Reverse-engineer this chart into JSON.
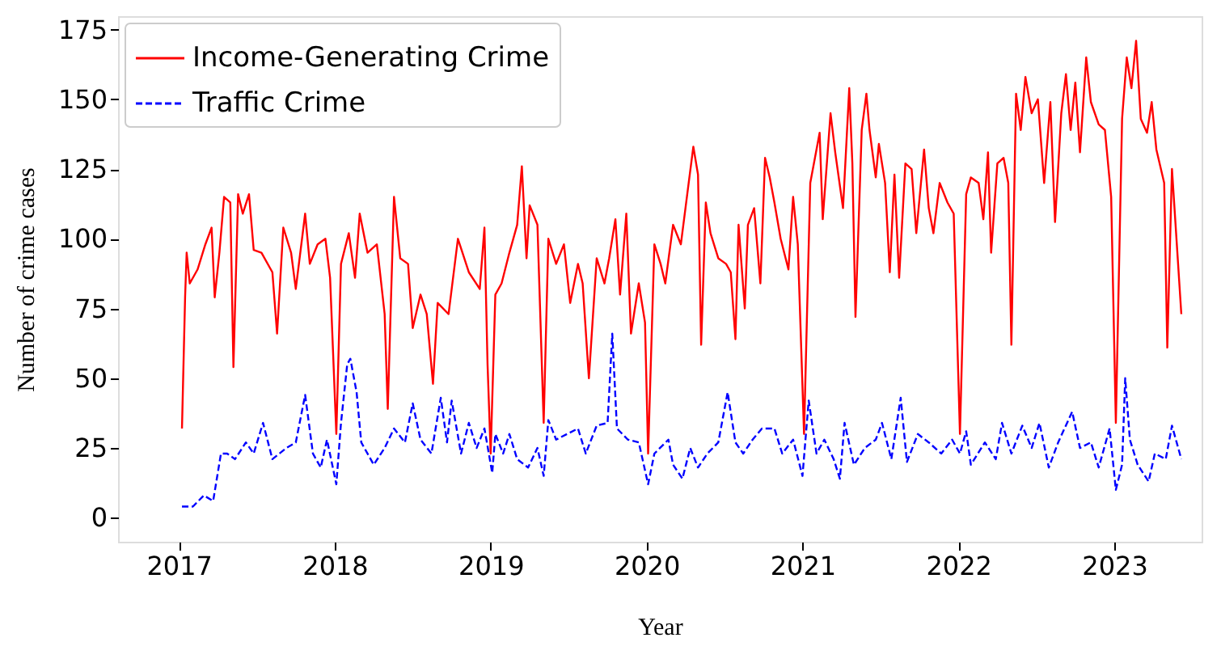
{
  "chart_data": {
    "type": "line",
    "xlabel": "Year",
    "ylabel": "Number of crime cases",
    "xlim": [
      2016.61,
      2023.56
    ],
    "xticks": [
      2017,
      2018,
      2019,
      2020,
      2021,
      2022,
      2023
    ],
    "ylim": [
      -8.6,
      179.8
    ],
    "yticks": [
      0,
      25,
      50,
      75,
      100,
      125,
      150,
      175
    ],
    "legend": "top left",
    "series": [
      {
        "name": "Income-Generating Crime",
        "color": "#ff0000",
        "line_style": "solid",
        "x": [
          2017.02,
          2017.04,
          2017.05,
          2017.07,
          2017.12,
          2017.17,
          2017.21,
          2017.23,
          2017.26,
          2017.29,
          2017.33,
          2017.35,
          2017.38,
          2017.41,
          2017.45,
          2017.48,
          2017.53,
          2017.6,
          2017.63,
          2017.67,
          2017.72,
          2017.75,
          2017.81,
          2017.84,
          2017.89,
          2017.94,
          2017.97,
          2018.01,
          2018.04,
          2018.09,
          2018.13,
          2018.16,
          2018.21,
          2018.27,
          2018.32,
          2018.34,
          2018.38,
          2018.42,
          2018.47,
          2018.5,
          2018.55,
          2018.59,
          2018.63,
          2018.66,
          2018.73,
          2018.79,
          2018.86,
          2018.93,
          2018.96,
          2018.98,
          2019.0,
          2019.03,
          2019.07,
          2019.12,
          2019.17,
          2019.2,
          2019.23,
          2019.25,
          2019.3,
          2019.34,
          2019.37,
          2019.42,
          2019.47,
          2019.51,
          2019.56,
          2019.59,
          2019.63,
          2019.68,
          2019.73,
          2019.76,
          2019.8,
          2019.83,
          2019.87,
          2019.9,
          2019.95,
          2019.99,
          2020.01,
          2020.05,
          2020.09,
          2020.12,
          2020.17,
          2020.22,
          2020.27,
          2020.3,
          2020.33,
          2020.35,
          2020.38,
          2020.41,
          2020.46,
          2020.51,
          2020.54,
          2020.57,
          2020.59,
          2020.63,
          2020.65,
          2020.69,
          2020.73,
          2020.76,
          2020.79,
          2020.82,
          2020.86,
          2020.91,
          2020.94,
          2020.97,
          2021.01,
          2021.05,
          2021.08,
          2021.11,
          2021.13,
          2021.18,
          2021.21,
          2021.26,
          2021.3,
          2021.32,
          2021.34,
          2021.38,
          2021.41,
          2021.43,
          2021.47,
          2021.49,
          2021.53,
          2021.56,
          2021.59,
          2021.62,
          2021.66,
          2021.7,
          2021.73,
          2021.78,
          2021.81,
          2021.84,
          2021.88,
          2021.93,
          2021.97,
          2022.01,
          2022.05,
          2022.08,
          2022.13,
          2022.16,
          2022.19,
          2022.21,
          2022.25,
          2022.29,
          2022.32,
          2022.34,
          2022.37,
          2022.4,
          2022.43,
          2022.47,
          2022.51,
          2022.55,
          2022.59,
          2022.62,
          2022.66,
          2022.69,
          2022.72,
          2022.75,
          2022.78,
          2022.82,
          2022.85,
          2022.9,
          2022.94,
          2022.98,
          2023.01,
          2023.05,
          2023.08,
          2023.11,
          2023.14,
          2023.17,
          2023.21,
          2023.24,
          2023.27,
          2023.32,
          2023.34,
          2023.37,
          2023.43
        ],
        "values": [
          32,
          79,
          95,
          84,
          89,
          98,
          104,
          79,
          95,
          115,
          113,
          54,
          116,
          109,
          116,
          96,
          95,
          88,
          66,
          104,
          95,
          82,
          109,
          91,
          98,
          100,
          86,
          30,
          91,
          102,
          86,
          109,
          95,
          98,
          73,
          39,
          115,
          93,
          91,
          68,
          80,
          73,
          48,
          77,
          73,
          100,
          88,
          82,
          104,
          55,
          23,
          80,
          84,
          95,
          105,
          126,
          93,
          112,
          105,
          34,
          100,
          91,
          98,
          77,
          91,
          84,
          50,
          93,
          84,
          93,
          107,
          80,
          109,
          66,
          84,
          70,
          23,
          98,
          91,
          84,
          105,
          98,
          120,
          133,
          123,
          62,
          113,
          102,
          93,
          91,
          88,
          64,
          105,
          75,
          105,
          111,
          84,
          129,
          122,
          113,
          100,
          89,
          115,
          98,
          30,
          120,
          129,
          138,
          107,
          145,
          131,
          111,
          154,
          127,
          72,
          139,
          152,
          139,
          122,
          134,
          120,
          88,
          123,
          86,
          127,
          125,
          102,
          132,
          111,
          102,
          120,
          113,
          109,
          30,
          116,
          122,
          120,
          107,
          131,
          95,
          127,
          129,
          120,
          62,
          152,
          139,
          158,
          145,
          150,
          120,
          149,
          106,
          145,
          159,
          139,
          156,
          131,
          165,
          149,
          141,
          139,
          115,
          34,
          143,
          165,
          154,
          171,
          143,
          138,
          149,
          132,
          120,
          61,
          125,
          73
        ]
      },
      {
        "name": "Traffic Crime",
        "color": "#0000ff",
        "line_style": "dashed",
        "x": [
          2017.02,
          2017.09,
          2017.16,
          2017.22,
          2017.27,
          2017.31,
          2017.36,
          2017.43,
          2017.48,
          2017.54,
          2017.6,
          2017.69,
          2017.75,
          2017.81,
          2017.86,
          2017.91,
          2017.95,
          2018.01,
          2018.04,
          2018.08,
          2018.1,
          2018.14,
          2018.17,
          2018.25,
          2018.32,
          2018.38,
          2018.45,
          2018.5,
          2018.55,
          2018.62,
          2018.68,
          2018.72,
          2018.75,
          2018.81,
          2018.86,
          2018.91,
          2018.96,
          2019.01,
          2019.03,
          2019.08,
          2019.12,
          2019.17,
          2019.24,
          2019.3,
          2019.34,
          2019.37,
          2019.42,
          2019.49,
          2019.56,
          2019.61,
          2019.68,
          2019.75,
          2019.78,
          2019.81,
          2019.88,
          2019.95,
          2020.01,
          2020.05,
          2020.14,
          2020.17,
          2020.23,
          2020.28,
          2020.33,
          2020.39,
          2020.46,
          2020.52,
          2020.57,
          2020.62,
          2020.68,
          2020.74,
          2020.82,
          2020.87,
          2020.94,
          2021.0,
          2021.04,
          2021.09,
          2021.14,
          2021.2,
          2021.24,
          2021.27,
          2021.33,
          2021.4,
          2021.47,
          2021.51,
          2021.57,
          2021.63,
          2021.67,
          2021.74,
          2021.81,
          2021.89,
          2021.96,
          2022.01,
          2022.05,
          2022.08,
          2022.17,
          2022.24,
          2022.28,
          2022.34,
          2022.41,
          2022.47,
          2022.52,
          2022.58,
          2022.64,
          2022.73,
          2022.78,
          2022.85,
          2022.9,
          2022.97,
          2023.01,
          2023.05,
          2023.07,
          2023.1,
          2023.15,
          2023.22,
          2023.26,
          2023.33,
          2023.37,
          2023.43
        ],
        "values": [
          4,
          4,
          8,
          6,
          23,
          23,
          21,
          27,
          23,
          34,
          21,
          25,
          27,
          44,
          23,
          18,
          28,
          12,
          34,
          55,
          57,
          45,
          27,
          19,
          25,
          32,
          27,
          41,
          28,
          23,
          43,
          27,
          42,
          23,
          34,
          25,
          32,
          16,
          30,
          23,
          30,
          21,
          18,
          25,
          15,
          35,
          28,
          30,
          32,
          23,
          33,
          34,
          66,
          32,
          28,
          27,
          12,
          23,
          28,
          19,
          14,
          25,
          18,
          23,
          27,
          45,
          27,
          23,
          28,
          32,
          32,
          23,
          28,
          15,
          42,
          23,
          28,
          21,
          14,
          34,
          19,
          25,
          28,
          34,
          21,
          43,
          20,
          30,
          27,
          23,
          28,
          23,
          31,
          19,
          27,
          21,
          34,
          23,
          33,
          25,
          34,
          18,
          27,
          38,
          25,
          27,
          18,
          32,
          10,
          19,
          50,
          28,
          19,
          13,
          23,
          21,
          33,
          21
        ]
      }
    ]
  }
}
